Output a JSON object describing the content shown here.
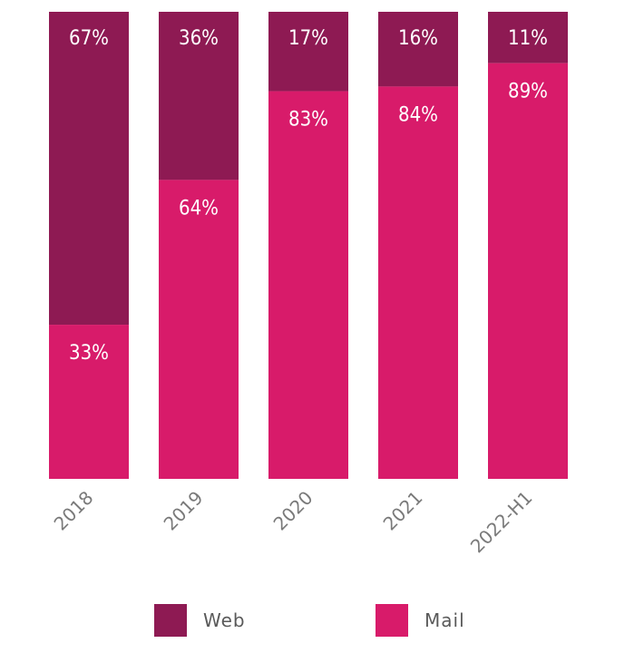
{
  "chart_data": {
    "type": "bar",
    "stacked": true,
    "percent_stacked": true,
    "categories": [
      "2018",
      "2019",
      "2020",
      "2021",
      "2022-H1"
    ],
    "series": [
      {
        "name": "Web",
        "values": [
          67,
          36,
          17,
          16,
          11
        ],
        "color": "#8e1a53"
      },
      {
        "name": "Mail",
        "values": [
          33,
          64,
          83,
          84,
          89
        ],
        "color": "#d81b6a"
      }
    ],
    "data_labels": {
      "Web": [
        "67%",
        "36%",
        "17%",
        "16%",
        "11%"
      ],
      "Mail": [
        "33%",
        "64%",
        "83%",
        "84%",
        "89%"
      ]
    },
    "ylim": [
      0,
      100
    ],
    "grid": false,
    "legend_position": "bottom",
    "title": "",
    "xlabel": "",
    "ylabel": ""
  },
  "legend": {
    "web_label": "Web",
    "mail_label": "Mail",
    "web_color": "#8e1a53",
    "mail_color": "#d81b6a"
  }
}
